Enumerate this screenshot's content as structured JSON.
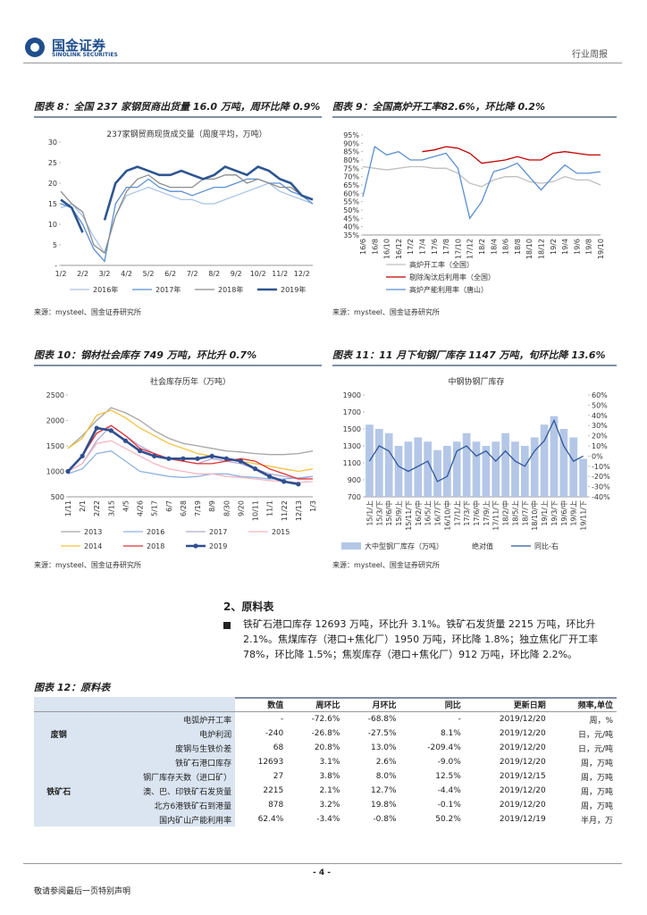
{
  "header": {
    "brand": "国金证券",
    "brand_en": "SINOLINK SECURITIES",
    "report_type": "行业周报"
  },
  "chart_data": [
    {
      "type": "line",
      "heading": "图表 8：全国 237 家钢贸商出货量 16.0 万吨，周环比降 0.9%",
      "title": "237家钢贸商现货成交量（周度平均，万吨）",
      "source": "来源：mysteel、国金证券研究所",
      "categories": [
        "1/2",
        null,
        "2/2",
        null,
        "3/2",
        null,
        "4/2",
        null,
        "5/2",
        null,
        "6/2",
        null,
        "7/2",
        null,
        "8/2",
        null,
        "9/2",
        null,
        "10/2",
        null,
        "11/2",
        null,
        "12/2",
        null
      ],
      "ylim": [
        0,
        30
      ],
      "yticks": [
        {
          "value": 0,
          "label": "-"
        },
        5,
        10,
        15,
        20,
        25,
        30
      ],
      "legend": "bottom",
      "series": [
        {
          "name": "2016年",
          "color": "#a9c4e6",
          "values": [
            14,
            15,
            12,
            7,
            3,
            12,
            17,
            18,
            19,
            18,
            17,
            16,
            16,
            15,
            15,
            16,
            17,
            18,
            19,
            20,
            18,
            17,
            16,
            15
          ]
        },
        {
          "name": "2017年",
          "color": "#5b8fd0",
          "values": [
            15,
            14,
            10,
            4,
            1,
            15,
            19,
            19,
            21,
            19,
            18,
            18,
            17,
            18,
            19,
            19,
            20,
            21,
            21,
            20,
            20,
            18,
            17,
            15
          ]
        },
        {
          "name": "2018年",
          "color": "#8c8c8c",
          "values": [
            18,
            15,
            13,
            5,
            3,
            12,
            18,
            21,
            22,
            20,
            19,
            19,
            19,
            21,
            21,
            22,
            22,
            20,
            21,
            20,
            19,
            19,
            17,
            16
          ]
        },
        {
          "name": "2019年",
          "color": "#2e5590",
          "values": [
            16,
            14,
            8,
            null,
            11,
            20,
            23,
            24,
            23,
            22,
            22,
            23,
            22,
            21,
            22,
            24,
            23,
            22,
            24,
            23,
            21,
            20,
            17,
            16
          ]
        }
      ]
    },
    {
      "type": "line",
      "heading": "图表 9：全国高炉开工率82.6%，环比降 0.2%",
      "source": "来源：mysteel、国金证券研究所",
      "categories": [
        "16/6",
        "16/8",
        "16/10",
        "16/12",
        "17/2",
        "17/4",
        "17/6",
        "17/8",
        "17/10",
        "17/12",
        "18/2",
        "18/4",
        "18/6",
        "18/8",
        "18/10",
        "18/12",
        "19/2",
        "19/4",
        "19/6",
        "19/8",
        "19/10"
      ],
      "ylim": [
        35,
        95
      ],
      "yticks": [
        {
          "value": 35,
          "label": "35%"
        },
        {
          "value": 40,
          "label": "40%"
        },
        {
          "value": 45,
          "label": "45%"
        },
        {
          "value": 50,
          "label": "50%"
        },
        {
          "value": 55,
          "label": "55%"
        },
        {
          "value": 60,
          "label": "60%"
        },
        {
          "value": 65,
          "label": "65%"
        },
        {
          "value": 70,
          "label": "70%"
        },
        {
          "value": 75,
          "label": "75%"
        },
        {
          "value": 80,
          "label": "80%"
        },
        {
          "value": 85,
          "label": "85%"
        },
        {
          "value": 90,
          "label": "90%"
        },
        {
          "value": 95,
          "label": "95%"
        }
      ],
      "legend": "bottom",
      "series": [
        {
          "name": "高炉开工率（全国）",
          "color": "#bfbfbf",
          "values": [
            76,
            75,
            74,
            75,
            76,
            76,
            75,
            75,
            72,
            66,
            64,
            68,
            70,
            70,
            67,
            66,
            67,
            70,
            68,
            68,
            65
          ]
        },
        {
          "name": "剔除淘汰后利用率（全国）",
          "color": "#c00000",
          "values": [
            null,
            null,
            null,
            null,
            null,
            85,
            86,
            88,
            87,
            84,
            78,
            79,
            80,
            82,
            80,
            80,
            84,
            85,
            84,
            83,
            83
          ]
        },
        {
          "name": "高炉产能利用率（唐山）",
          "color": "#5b8fd0",
          "values": [
            58,
            88,
            83,
            85,
            80,
            80,
            82,
            84,
            75,
            45,
            55,
            73,
            75,
            78,
            70,
            62,
            70,
            77,
            72,
            72,
            73
          ]
        }
      ]
    },
    {
      "type": "line",
      "heading": "图表 10：钢材社会库存 749 万吨，环比升 0.7%",
      "title": "社会库存历年（万吨）",
      "source": "来源：mysteel、国金证券研究所",
      "categories": [
        "1/11",
        "2/1",
        "2/22",
        "3/15",
        "4/5",
        "4/26",
        "5/17",
        "6/7",
        "6/28",
        "7/19",
        "8/9",
        "8/30",
        "9/20",
        "10/11",
        "11/1",
        "11/22",
        "12/13",
        "1/3"
      ],
      "ylim": [
        500,
        2500
      ],
      "yticks": [
        500,
        1000,
        1500,
        2000,
        2500
      ],
      "legend": "bottom",
      "series": [
        {
          "name": "2013",
          "color": "#a6a6a6",
          "values": [
            1450,
            1700,
            2000,
            2250,
            2150,
            2000,
            1800,
            1650,
            1550,
            1500,
            1450,
            1400,
            1380,
            1350,
            1330,
            1330,
            1350,
            1400
          ]
        },
        {
          "name": "2016",
          "color": "#8fb3e0",
          "values": [
            950,
            1050,
            1350,
            1400,
            1200,
            1000,
            950,
            900,
            880,
            900,
            950,
            950,
            900,
            880,
            850,
            850,
            870,
            900
          ]
        },
        {
          "name": "2017",
          "color": "#b4a7d6",
          "values": [
            1000,
            1150,
            1600,
            1900,
            1700,
            1500,
            1350,
            1250,
            1200,
            1150,
            1250,
            1200,
            1150,
            1050,
            950,
            900,
            850,
            900
          ]
        },
        {
          "name": "2015",
          "color": "#f4b6c2",
          "values": [
            1000,
            1150,
            1550,
            1600,
            1450,
            1300,
            1150,
            1050,
            1000,
            950,
            950,
            900,
            880,
            850,
            820,
            800,
            780,
            800
          ]
        },
        {
          "name": "2014",
          "color": "#f4c242",
          "values": [
            1450,
            1650,
            2100,
            2200,
            2050,
            1850,
            1700,
            1550,
            1450,
            1350,
            1300,
            1250,
            1200,
            1150,
            1100,
            1050,
            1000,
            1050
          ]
        },
        {
          "name": "2018",
          "color": "#e03030",
          "values": [
            1000,
            1300,
            1750,
            1900,
            1700,
            1450,
            1350,
            1250,
            1200,
            1150,
            1150,
            1200,
            1250,
            1200,
            1050,
            950,
            850,
            850
          ]
        },
        {
          "name": "2019",
          "color": "#2f4f8f",
          "markers": true,
          "values": [
            1000,
            1300,
            1850,
            1800,
            1600,
            1400,
            1300,
            1250,
            1250,
            1250,
            1300,
            1250,
            1200,
            1050,
            900,
            800,
            749,
            null
          ]
        }
      ]
    },
    {
      "type": "combo",
      "heading": "图表 11：11 月下旬钢厂库存 1147 万吨，旬环比降 13.6%",
      "title": "中钢协钢厂库存",
      "source": "来源：mysteel、国金证券研究所",
      "categories": [
        "15/1/上",
        "15/3/下",
        "15/6/中",
        "15/9/上",
        "15/11/下",
        "16/2/中",
        "16/5/上",
        "16/7/下",
        "16/10/中",
        "17/1/上",
        "17/3/下",
        "17/6/中",
        "17/9/上",
        "17/11/下",
        "18/2/中",
        "18/5/上",
        "18/7/下",
        "18/10/中",
        "19/1/上",
        "19/3/下",
        "19/6/中",
        "19/9/上",
        "19/11/下"
      ],
      "ylim": [
        700,
        1900
      ],
      "yticks": [
        700,
        900,
        1100,
        1300,
        1500,
        1700,
        1900
      ],
      "y2lim": [
        -40,
        60
      ],
      "y2ticks": [
        {
          "value": -40,
          "label": "-40%"
        },
        {
          "value": -30,
          "label": "-30%"
        },
        {
          "value": -20,
          "label": "-20%"
        },
        {
          "value": -10,
          "label": "-10%"
        },
        {
          "value": 0,
          "label": "0%"
        },
        {
          "value": 10,
          "label": "10%"
        },
        {
          "value": 20,
          "label": "20%"
        },
        {
          "value": 30,
          "label": "30%"
        },
        {
          "value": 40,
          "label": "40%"
        },
        {
          "value": 50,
          "label": "50%"
        },
        {
          "value": 60,
          "label": "60%"
        }
      ],
      "legend": "bottom",
      "series": [
        {
          "name": "大中型钢厂库存（万吨）",
          "type": "bar",
          "color": "#b4c7e7",
          "values": [
            1550,
            1500,
            1450,
            1300,
            1350,
            1400,
            1350,
            1250,
            1300,
            1350,
            1450,
            1350,
            1300,
            1350,
            1450,
            1350,
            1300,
            1400,
            1550,
            1650,
            1500,
            1400,
            1147
          ]
        },
        {
          "name": "绝对值",
          "type": "line",
          "color": "#ffffff",
          "values": [
            null,
            null,
            null,
            null,
            null,
            null,
            null,
            null,
            null,
            null,
            null,
            null,
            null,
            null,
            null,
            null,
            null,
            null,
            null,
            null,
            null,
            null,
            null
          ]
        },
        {
          "name": "同比-右",
          "type": "line",
          "axis": "y2",
          "color": "#2f5597",
          "values": [
            -5,
            10,
            5,
            -10,
            -15,
            -10,
            -5,
            -25,
            -20,
            5,
            10,
            0,
            5,
            -5,
            5,
            -5,
            -10,
            5,
            15,
            35,
            10,
            -5,
            0
          ]
        }
      ]
    }
  ],
  "section": {
    "title": "2、原料表",
    "bullet": "铁矿石港口库存 12693 万吨，环比升 3.1%。铁矿石发货量 2215 万吨，环比升 2.1%。焦煤库存（港口+焦化厂）1950 万吨，环比降 1.8%；独立焦化厂开工率 78%，环比降 1.5%；焦炭库存（港口+焦化厂）912 万吨，环比降 2.2%。"
  },
  "table": {
    "heading": "图表 12：原料表",
    "header": [
      "数值",
      "周环比",
      "月环比",
      "同比",
      "更新日期",
      "频率,单位"
    ],
    "groups": [
      {
        "name": "废钢",
        "rows": [
          [
            "电弧炉开工率",
            "-",
            "-72.6%",
            "-68.8%",
            "-",
            "2019/12/20",
            "周，%"
          ],
          [
            "电炉利润",
            "-240",
            "-26.8%",
            "-27.5%",
            "8.1%",
            "2019/12/20",
            "日，元/吨"
          ],
          [
            "废钢与生铁价差",
            "68",
            "20.8%",
            "13.0%",
            "-209.4%",
            "2019/12/20",
            "日，元/吨"
          ]
        ]
      },
      {
        "name": "铁矿石",
        "rows": [
          [
            "铁矿石港口库存",
            "12693",
            "3.1%",
            "2.6%",
            "-9.0%",
            "2019/12/20",
            "周，万吨"
          ],
          [
            "钢厂库存天数（进口矿）",
            "27",
            "3.8%",
            "8.0%",
            "12.5%",
            "2019/12/15",
            "周，万吨"
          ],
          [
            "澳、巴、印铁矿石发货量",
            "2215",
            "2.1%",
            "12.7%",
            "-4.4%",
            "2019/12/20",
            "周，万吨"
          ],
          [
            "北方6港铁矿石到港量",
            "878",
            "3.2%",
            "19.8%",
            "-0.1%",
            "2019/12/20",
            "周，万吨"
          ],
          [
            "国内矿山产能利用率",
            "62.4%",
            "-3.4%",
            "-0.8%",
            "50.2%",
            "2019/12/19",
            "半月，万"
          ]
        ]
      }
    ]
  },
  "footer": {
    "page": "- 4 -",
    "note": "敬请参阅最后一页特别声明"
  }
}
